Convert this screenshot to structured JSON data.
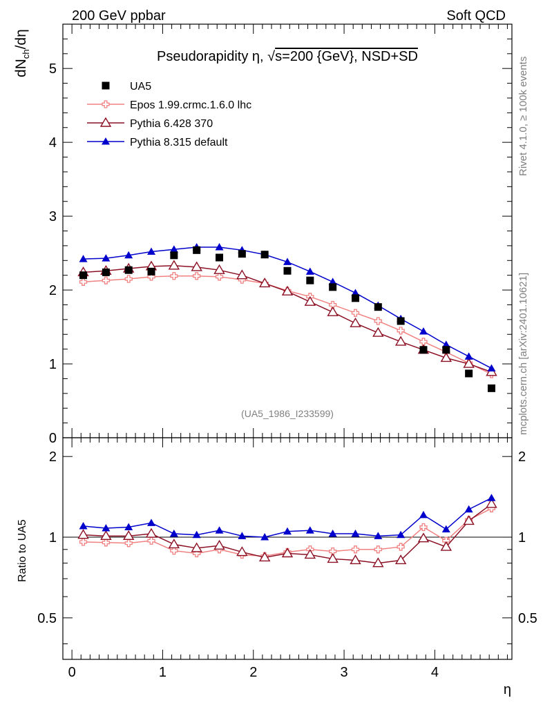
{
  "header": {
    "left": "200 GeV ppbar",
    "right": "Soft QCD"
  },
  "side_labels": {
    "rivet": "Rivet 4.1.0, ≥ 100k events",
    "mcplots": "mcplots.cern.ch [arXiv:2401.10621]"
  },
  "chart_data": {
    "type": "line",
    "title": "Pseudorapidity η, √s=200 {GeV}, NSD+SD",
    "title_parts": {
      "pre": "Pseudorapidity ",
      "eta": "η",
      "comma": ", ",
      "sqrt": "√",
      "s_energy": "s=200 {GeV}, NSD+SD"
    },
    "analysis_id": "(UA5_1986_I233599)",
    "xlabel": "η",
    "ylabel": {
      "main": "dN",
      "sub": "ch",
      "rest": "/dη"
    },
    "ratio_ylabel": "Ratio to UA5",
    "xlim": [
      -0.1,
      4.85
    ],
    "ylim": [
      0,
      5.6
    ],
    "ratio_ylim": [
      0.35,
      2.35
    ],
    "x_ticks": [
      0,
      1,
      2,
      3,
      4
    ],
    "x_tick_labels": [
      "0",
      "1",
      "2",
      "3",
      "4"
    ],
    "y_ticks": [
      0,
      1,
      2,
      3,
      4,
      5
    ],
    "y_tick_labels": [
      "0",
      "1",
      "2",
      "3",
      "4",
      "5"
    ],
    "ratio_y_ticks": [
      0.5,
      1,
      2
    ],
    "ratio_y_tick_labels": [
      "0.5",
      "1",
      "2"
    ],
    "x": [
      0.125,
      0.375,
      0.625,
      0.875,
      1.125,
      1.375,
      1.625,
      1.875,
      2.125,
      2.375,
      2.625,
      2.875,
      3.125,
      3.375,
      3.625,
      3.875,
      4.125,
      4.375,
      4.625
    ],
    "data": {
      "name": "UA5",
      "color": "#000000",
      "values": [
        2.2,
        2.24,
        2.27,
        2.25,
        2.47,
        2.54,
        2.44,
        2.49,
        2.48,
        2.26,
        2.13,
        2.04,
        1.89,
        1.77,
        1.58,
        1.19,
        1.19,
        0.87,
        0.67
      ]
    },
    "series": [
      {
        "name": "Epos 1.99.crmc.1.6.0 lhc",
        "color": "#f08080",
        "marker": "cross",
        "values": [
          2.11,
          2.13,
          2.15,
          2.18,
          2.19,
          2.19,
          2.18,
          2.14,
          2.09,
          1.99,
          1.91,
          1.8,
          1.69,
          1.58,
          1.45,
          1.3,
          1.16,
          1.01,
          0.86
        ],
        "ratio": [
          0.96,
          0.955,
          0.95,
          0.97,
          0.89,
          0.87,
          0.9,
          0.86,
          0.85,
          0.88,
          0.9,
          0.885,
          0.9,
          0.9,
          0.92,
          1.09,
          0.97,
          1.16,
          1.28
        ]
      },
      {
        "name": "Pythia 6.428 370",
        "color": "#8b0f23",
        "marker": "open-triangle",
        "values": [
          2.24,
          2.26,
          2.29,
          2.32,
          2.33,
          2.31,
          2.27,
          2.2,
          2.09,
          1.98,
          1.84,
          1.7,
          1.55,
          1.42,
          1.3,
          1.19,
          1.08,
          1.0,
          0.89
        ],
        "ratio": [
          1.02,
          1.01,
          1.01,
          1.03,
          0.94,
          0.91,
          0.93,
          0.88,
          0.84,
          0.87,
          0.86,
          0.83,
          0.82,
          0.8,
          0.82,
          0.99,
          0.92,
          1.15,
          1.33
        ]
      },
      {
        "name": "Pythia 8.315 default",
        "color": "#0000cc",
        "marker": "filled-triangle",
        "values": [
          2.42,
          2.43,
          2.47,
          2.52,
          2.55,
          2.58,
          2.58,
          2.54,
          2.48,
          2.38,
          2.25,
          2.11,
          1.96,
          1.79,
          1.61,
          1.44,
          1.26,
          1.1,
          0.94
        ],
        "ratio": [
          1.1,
          1.08,
          1.09,
          1.13,
          1.03,
          1.02,
          1.06,
          1.01,
          1.0,
          1.05,
          1.06,
          1.03,
          1.03,
          1.01,
          1.02,
          1.21,
          1.07,
          1.27,
          1.4
        ]
      }
    ]
  }
}
